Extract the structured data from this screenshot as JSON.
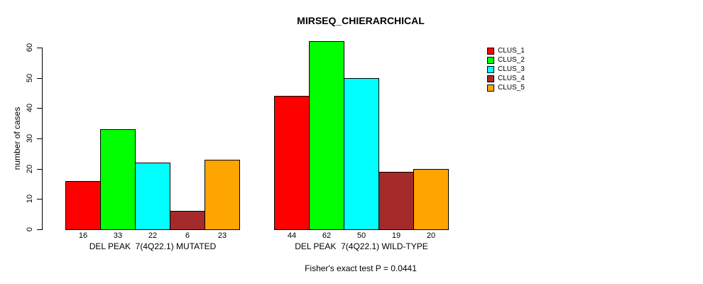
{
  "page": {
    "background": "#FFFFFF",
    "text_color": "#000000"
  },
  "chart_data": {
    "type": "bar",
    "title": "MIRSEQ_CHIERARCHICAL",
    "xlabel": "",
    "ylabel": "number of cases",
    "ylim": [
      0,
      60
    ],
    "yticks": [
      0,
      10,
      20,
      30,
      40,
      50,
      60
    ],
    "ytick_labels_rotated": true,
    "grid": false,
    "legend_position": "right",
    "bar_border_color": "#000000",
    "show_bar_values": true,
    "categories": [
      "DEL PEAK  7(4Q22.1) MUTATED",
      "DEL PEAK  7(4Q22.1) WILD-TYPE"
    ],
    "series": [
      {
        "name": "CLUS_1",
        "color": "#FF0000",
        "values": [
          16,
          44
        ]
      },
      {
        "name": "CLUS_2",
        "color": "#00FF00",
        "values": [
          33,
          62
        ]
      },
      {
        "name": "CLUS_3",
        "color": "#00FFFF",
        "values": [
          22,
          50
        ]
      },
      {
        "name": "CLUS_4",
        "color": "#A52A2A",
        "values": [
          6,
          19
        ]
      },
      {
        "name": "CLUS_5",
        "color": "#FFA500",
        "values": [
          23,
          20
        ]
      }
    ],
    "annotation": "Fisher's exact test P = 0.0441"
  }
}
